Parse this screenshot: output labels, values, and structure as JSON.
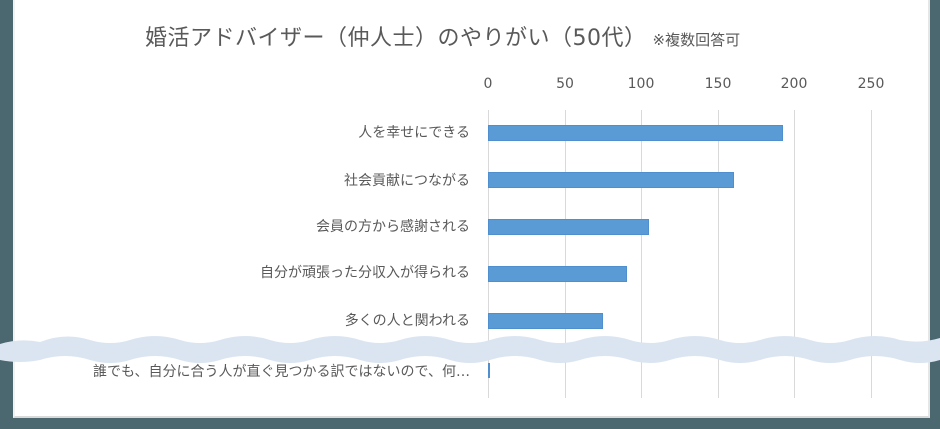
{
  "chart_data": {
    "type": "bar",
    "orientation": "horizontal",
    "title": "婚活アドバイザー（仲人士）のやりがい（50代）",
    "subtitle": "※複数回答可",
    "xlabel": "",
    "ylabel": "",
    "xlim": [
      0,
      250
    ],
    "x_ticks": [
      "0",
      "50",
      "100",
      "150",
      "200",
      "250"
    ],
    "grid": true,
    "legend": null,
    "categories": [
      "人を幸せにできる",
      "社会貢献につながる",
      "会員の方から感謝される",
      "自分が頑張った分収入が得られる",
      "多くの人と関われる",
      "誰でも、自分に合う人が直ぐ見つかる訳ではないので、何…"
    ],
    "values": [
      193,
      161,
      105,
      91,
      75,
      1
    ],
    "bar_color": "#5b9bd5",
    "annotations": [
      "wavy break between 5th and 6th category (omitted rows)"
    ]
  },
  "title": {
    "main": "婚活アドバイザー（仲人士）のやりがい（50代）",
    "note": "※複数回答可"
  },
  "axis": {
    "ticks": [
      "0",
      "50",
      "100",
      "150",
      "200",
      "250"
    ]
  },
  "categories": [
    "人を幸せにできる",
    "社会貢献につながる",
    "会員の方から感謝される",
    "自分が頑張った分収入が得られる",
    "多くの人と関われる",
    "誰でも、自分に合う人が直ぐ見つかる訳ではないので、何…"
  ],
  "colors": {
    "bar": "#5b9bd5",
    "background": "#4b6770",
    "wave": "#dbe5f1",
    "text": "#595959"
  }
}
